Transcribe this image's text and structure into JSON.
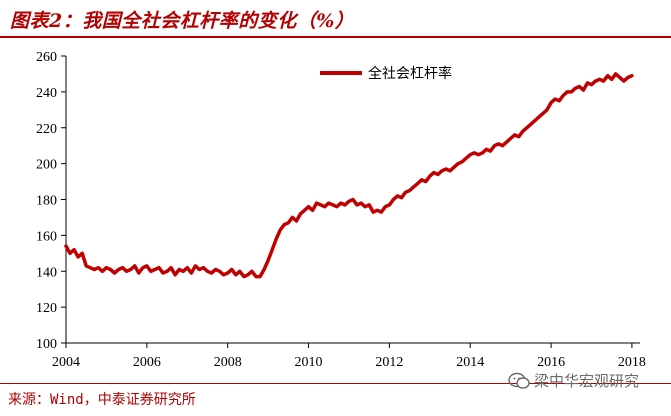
{
  "header": {
    "title": "图表2：我国全社会杠杆率的变化（%）"
  },
  "footer": {
    "source": "来源：Wind，中泰证券研究所",
    "watermark": "梁中华宏观研究"
  },
  "colors": {
    "accent": "#b30000",
    "series": "#c00000"
  },
  "chart_data": {
    "type": "line",
    "title": "",
    "xlabel": "",
    "ylabel": "",
    "xlim": [
      2004,
      2018.2
    ],
    "ylim": [
      100,
      260
    ],
    "xticks": [
      2004,
      2006,
      2008,
      2010,
      2012,
      2014,
      2016,
      2018
    ],
    "yticks": [
      100,
      120,
      140,
      160,
      180,
      200,
      220,
      240,
      260
    ],
    "grid": false,
    "legend": "top-right",
    "series": [
      {
        "name": "全社会杠杆率",
        "x": [
          2004.0,
          2004.1,
          2004.2,
          2004.3,
          2004.4,
          2004.5,
          2004.6,
          2004.7,
          2004.8,
          2004.9,
          2005.0,
          2005.1,
          2005.2,
          2005.3,
          2005.4,
          2005.5,
          2005.6,
          2005.7,
          2005.8,
          2005.9,
          2006.0,
          2006.1,
          2006.2,
          2006.3,
          2006.4,
          2006.5,
          2006.6,
          2006.7,
          2006.8,
          2006.9,
          2007.0,
          2007.1,
          2007.2,
          2007.3,
          2007.4,
          2007.5,
          2007.6,
          2007.7,
          2007.8,
          2007.9,
          2008.0,
          2008.1,
          2008.2,
          2008.3,
          2008.4,
          2008.5,
          2008.6,
          2008.7,
          2008.8,
          2008.9,
          2009.0,
          2009.1,
          2009.2,
          2009.3,
          2009.4,
          2009.5,
          2009.6,
          2009.7,
          2009.8,
          2009.9,
          2010.0,
          2010.1,
          2010.2,
          2010.3,
          2010.4,
          2010.5,
          2010.6,
          2010.7,
          2010.8,
          2010.9,
          2011.0,
          2011.1,
          2011.2,
          2011.3,
          2011.4,
          2011.5,
          2011.6,
          2011.7,
          2011.8,
          2011.9,
          2012.0,
          2012.1,
          2012.2,
          2012.3,
          2012.4,
          2012.5,
          2012.6,
          2012.7,
          2012.8,
          2012.9,
          2013.0,
          2013.1,
          2013.2,
          2013.3,
          2013.4,
          2013.5,
          2013.6,
          2013.7,
          2013.8,
          2013.9,
          2014.0,
          2014.1,
          2014.2,
          2014.3,
          2014.4,
          2014.5,
          2014.6,
          2014.7,
          2014.8,
          2014.9,
          2015.0,
          2015.1,
          2015.2,
          2015.3,
          2015.4,
          2015.5,
          2015.6,
          2015.7,
          2015.8,
          2015.9,
          2016.0,
          2016.1,
          2016.2,
          2016.3,
          2016.4,
          2016.5,
          2016.6,
          2016.7,
          2016.8,
          2016.9,
          2017.0,
          2017.1,
          2017.2,
          2017.3,
          2017.4,
          2017.5,
          2017.6,
          2017.7,
          2017.8,
          2017.9,
          2018.0
        ],
        "values": [
          154,
          150,
          152,
          148,
          150,
          143,
          142,
          141,
          142,
          140,
          142,
          141,
          139,
          141,
          142,
          140,
          141,
          143,
          139,
          142,
          143,
          140,
          141,
          142,
          139,
          140,
          142,
          138,
          141,
          140,
          142,
          139,
          143,
          141,
          142,
          140,
          139,
          141,
          140,
          138,
          139,
          141,
          138,
          140,
          137,
          138,
          140,
          137,
          137,
          141,
          146,
          152,
          158,
          163,
          166,
          167,
          170,
          168,
          172,
          174,
          176,
          174,
          178,
          177,
          176,
          178,
          177,
          176,
          178,
          177,
          179,
          180,
          177,
          178,
          176,
          177,
          173,
          174,
          173,
          176,
          177,
          180,
          182,
          181,
          184,
          185,
          187,
          189,
          191,
          190,
          193,
          195,
          194,
          196,
          197,
          196,
          198,
          200,
          201,
          203,
          205,
          206,
          205,
          206,
          208,
          207,
          210,
          211,
          210,
          212,
          214,
          216,
          215,
          218,
          220,
          222,
          224,
          226,
          228,
          230,
          234,
          236,
          235,
          238,
          240,
          240,
          242,
          243,
          241,
          245,
          244,
          246,
          247,
          246,
          249,
          247,
          250,
          248,
          246,
          248,
          249
        ]
      }
    ]
  }
}
